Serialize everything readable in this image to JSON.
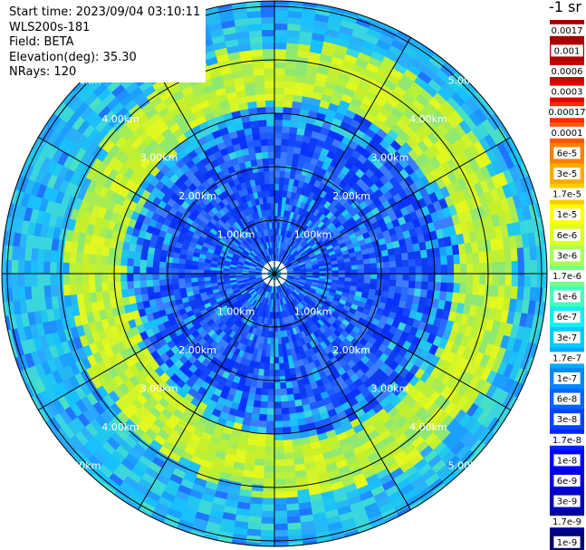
{
  "header": {
    "start_time": "Start time: 2023/09/04 03:10:11",
    "instrument": "WLS200s-181",
    "field": "Field: BETA",
    "elevation": "Elevation(deg): 35.30",
    "nrays": "NRays: 120"
  },
  "units_label": "-1 sr",
  "range_rings": {
    "labels": [
      "1.00km",
      "2.00km",
      "3.00km",
      "4.00km",
      "5.00km"
    ]
  },
  "colorbar": {
    "entries": [
      {
        "label": "0.0017",
        "color": "#a00000"
      },
      {
        "label": "0.001",
        "color": "#b00000"
      },
      {
        "label": "0.0006",
        "color": "#cc0000"
      },
      {
        "label": "0.0003",
        "color": "#e60000"
      },
      {
        "label": "0.00017",
        "color": "#ff2a00"
      },
      {
        "label": "0.0001",
        "color": "#ff5500"
      },
      {
        "label": "6e-5",
        "color": "#ff7f00"
      },
      {
        "label": "3e-5",
        "color": "#ffaa00"
      },
      {
        "label": "1.7e-5",
        "color": "#ffcc00"
      },
      {
        "label": "1e-5",
        "color": "#ffff00"
      },
      {
        "label": "6e-6",
        "color": "#ddff22"
      },
      {
        "label": "3e-6",
        "color": "#aaff55"
      },
      {
        "label": "1.7e-6",
        "color": "#77ff88"
      },
      {
        "label": "1e-6",
        "color": "#44ffbb"
      },
      {
        "label": "6e-7",
        "color": "#11f0ee"
      },
      {
        "label": "3e-7",
        "color": "#00ccff"
      },
      {
        "label": "1.7e-7",
        "color": "#00aaff"
      },
      {
        "label": "1e-7",
        "color": "#0088ff"
      },
      {
        "label": "6e-8",
        "color": "#0066ff"
      },
      {
        "label": "3e-8",
        "color": "#0044ff"
      },
      {
        "label": "1.7e-8",
        "color": "#0022ff"
      },
      {
        "label": "1e-8",
        "color": "#0000ff"
      },
      {
        "label": "6e-9",
        "color": "#0000dd"
      },
      {
        "label": "3e-9",
        "color": "#0000bb"
      },
      {
        "label": "1.7e-9",
        "color": "#000099"
      },
      {
        "label": "1e-9",
        "color": "#000077"
      }
    ]
  },
  "colors": {
    "background": "#ffffff",
    "grid": "#000000",
    "inner_field": "#1a5cff",
    "ring_band": "#c8f02a",
    "outer_field": "#1fb4f0"
  }
}
